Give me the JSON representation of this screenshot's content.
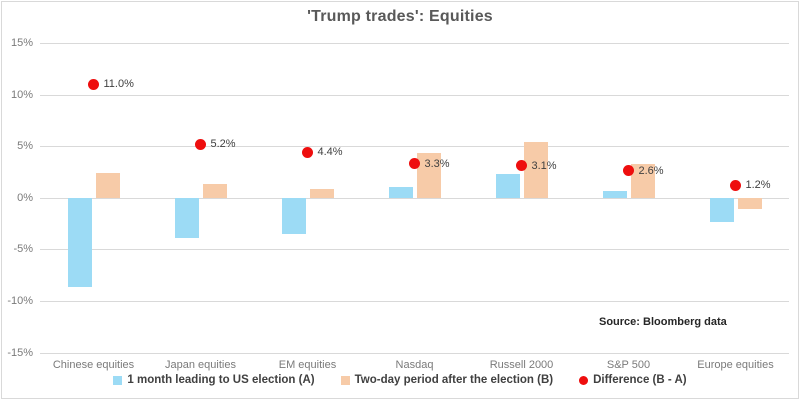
{
  "chart_data": {
    "type": "bar",
    "title": "'Trump trades': Equities",
    "source": "Source: Bloomberg data",
    "categories": [
      "Chinese equities",
      "Japan equities",
      "EM equities",
      "Nasdaq",
      "Russell 2000",
      "S&P 500",
      "Europe equities"
    ],
    "series": [
      {
        "name": "1 month leading to US election (A)",
        "color": "#9cdbf5",
        "values": [
          -8.6,
          -3.9,
          -3.5,
          1.0,
          2.3,
          0.7,
          -2.3
        ]
      },
      {
        "name": "Two-day period after the election (B)",
        "color": "#f7cba8",
        "values": [
          2.4,
          1.3,
          0.9,
          4.3,
          5.4,
          3.3,
          -1.1
        ]
      }
    ],
    "markers": {
      "name": "Difference (B - A)",
      "color": "#ee0e0e",
      "values": [
        11.0,
        5.2,
        4.4,
        3.3,
        3.1,
        2.6,
        1.2
      ],
      "labels": [
        "11.0%",
        "5.2%",
        "4.4%",
        "3.3%",
        "3.1%",
        "2.6%",
        "1.2%"
      ]
    },
    "ylim": [
      -15,
      15
    ],
    "yticks": [
      {
        "value": 15,
        "label": "15%"
      },
      {
        "value": 10,
        "label": "10%"
      },
      {
        "value": 5,
        "label": "5%"
      },
      {
        "value": 0,
        "label": "0%"
      },
      {
        "value": -5,
        "label": "-5%"
      },
      {
        "value": -10,
        "label": "-10%"
      },
      {
        "value": -15,
        "label": "-15%"
      }
    ],
    "grid": true,
    "legend_position": "bottom"
  }
}
